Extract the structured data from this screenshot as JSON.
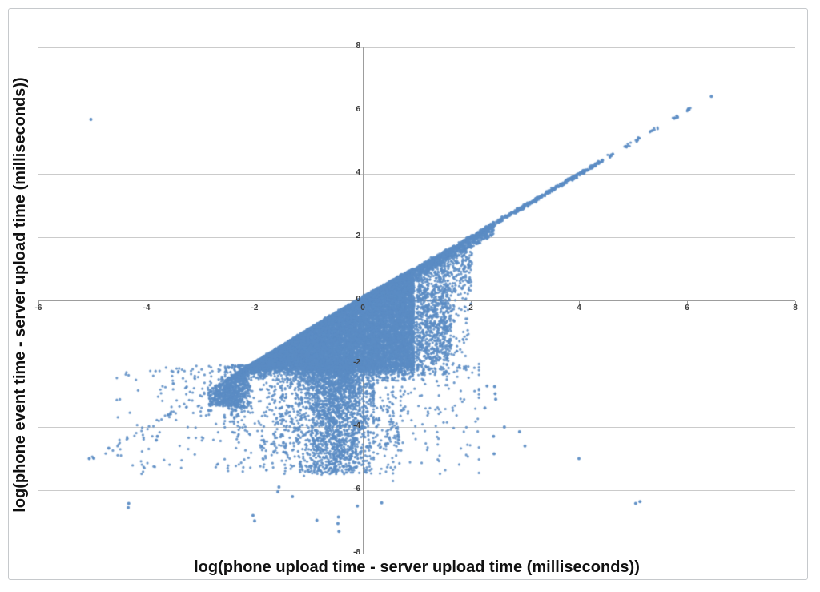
{
  "chart_data": {
    "type": "scatter",
    "title": "",
    "xlabel": "log(phone upload time - server upload time (milliseconds))",
    "ylabel": "log(phone event time - server upload time (milliseconds))",
    "xlim": [
      -6,
      8
    ],
    "ylim": [
      -8,
      8
    ],
    "x_ticks": [
      -6,
      -4,
      -2,
      0,
      2,
      4,
      6,
      8
    ],
    "y_ticks": [
      8,
      6,
      4,
      2,
      0,
      -2,
      -4,
      -6,
      -8
    ],
    "grid": "horizontal-only",
    "legend": "none",
    "point_color": "#5b8cc4",
    "gridline_color": "#cbcbcb",
    "axis_color": "#9d9d9d",
    "tick_label_color": "#3d3d3d",
    "title_color": "#111111",
    "marker_radius_px": 1.6,
    "description": "Dense wedge of points bounded above by the identity line y=x from (-2.85,-2.85) to about (1,1), with flat bottom near y=-2; vertical striation columns hang from the line for x between 1 and 2; the y=x line continues densely to (4.4,4.4) then as sparse dashes to (6.45,6.45); a broad sparse spray lies below y=-2 between x=-4.5 and x=2 reaching y=-7; a sparse y=x tail runs from (-5,-5) to (-2.9,-2.9); one isolated outlier sits near (-5,5.7).",
    "generation": {
      "seed": 42,
      "regions": [
        {
          "kind": "wedge",
          "n": 14500,
          "x_min": -2.85,
          "x_max": 0.95,
          "bottom": -2.08,
          "tip_width": 0.45,
          "tip_grow": 1.15,
          "fringe": 0.28,
          "top_bias": 1.25,
          "x_pow": 0.6
        },
        {
          "kind": "fringe",
          "n": 620,
          "x_min": -2.55,
          "x_max": 0.95,
          "y_top": -2.05,
          "depth": 0.5,
          "pow": 2.3
        },
        {
          "kind": "cols",
          "n_cols": 15,
          "x_min": 0.98,
          "x_max": 1.63,
          "depth_min": -1.6,
          "depth_max": -2.45,
          "pts_min": 40,
          "pts_max": 80,
          "jitter": 0.02,
          "bump": 0.08
        },
        {
          "kind": "cols",
          "n_cols": 7,
          "x_min": 1.67,
          "x_max": 2.03,
          "depth_min": 0.55,
          "depth_max": -0.5,
          "pts_min": 10,
          "pts_max": 28,
          "jitter": 0.015,
          "bump": 0.05
        },
        {
          "kind": "below_line",
          "n": 300,
          "x_min": 0.95,
          "x_max": 2.0,
          "y_min": -2.25
        },
        {
          "kind": "line",
          "n": 950,
          "x_min": 0.9,
          "x_max": 2.42,
          "below": 0.32,
          "below_pow": 2.3,
          "jitter": 0.035
        },
        {
          "kind": "line",
          "n": 430,
          "x_min": 2.36,
          "x_max": 4.45,
          "below": 0.06,
          "below_pow": 3,
          "jitter": 0.028
        },
        {
          "kind": "dashes",
          "segments": [
            [
              4.5,
              4.68
            ],
            [
              4.82,
              4.96
            ],
            [
              5.03,
              5.12
            ],
            [
              5.3,
              5.47
            ],
            [
              5.72,
              5.84
            ],
            [
              6.0,
              6.08
            ]
          ],
          "pts_per": 9,
          "jitter": 0.03
        },
        {
          "kind": "line",
          "n": 30,
          "x_min": -5.05,
          "x_max": -2.92,
          "below": 0.12,
          "below_pow": 2,
          "jitter": 0.045
        },
        {
          "kind": "dashes",
          "segments": [
            [
              -3.66,
              -3.5
            ]
          ],
          "pts_per": 9,
          "jitter": 0.025
        },
        {
          "kind": "col",
          "x": -2.82,
          "y1": -2.82,
          "y2": -3.62,
          "n": 16,
          "jitter": 0.02
        },
        {
          "kind": "col",
          "x": -4.07,
          "y1": -4.15,
          "y2": -5.55,
          "n": 9,
          "jitter": 0.02
        },
        {
          "kind": "col",
          "x": -4.5,
          "y1": -4.4,
          "y2": -5.15,
          "n": 5,
          "jitter": 0.02
        },
        {
          "kind": "col",
          "x": -1.85,
          "y1": -3.65,
          "y2": -5.2,
          "n": 10,
          "jitter": 0.025
        },
        {
          "kind": "col",
          "x": 1.38,
          "y1": -2.35,
          "y2": -5.55,
          "n": 12,
          "jitter": 0.03
        },
        {
          "kind": "col",
          "x": 0.55,
          "y1": -2.6,
          "y2": -5.9,
          "n": 13,
          "jitter": 0.03
        },
        {
          "kind": "gauss_band",
          "n": 2300,
          "x_center": -0.52,
          "x_sigma": 0.34,
          "x_min": -1.35,
          "x_max": 0.2,
          "y_top": -2.02,
          "depth": 3.45,
          "pow": 1.8
        },
        {
          "kind": "streaks",
          "n_streaks": 48,
          "x_min": -2.55,
          "x_max": 0.95,
          "top_min": -2.2,
          "top_max": -4.4,
          "len_min": 0.25,
          "len_max": 1.3,
          "pts_min": 4,
          "pts_max": 11
        },
        {
          "kind": "gauss_band",
          "n": 980,
          "x_center": -0.9,
          "x_sigma": 1.4,
          "x_min": -4.55,
          "x_max": 2.15,
          "y_top": -2.12,
          "depth": 3.3,
          "pow": 1.95
        }
      ],
      "outlier_points": [
        [
          -5.03,
          5.72
        ],
        [
          6.45,
          6.45
        ],
        [
          2.3,
          -2.7
        ],
        [
          2.44,
          -2.72
        ],
        [
          2.45,
          -2.95
        ],
        [
          2.46,
          -3.12
        ],
        [
          2.26,
          -3.4
        ],
        [
          2.62,
          -4.0
        ],
        [
          2.9,
          -4.15
        ],
        [
          2.42,
          -4.3
        ],
        [
          3.0,
          -4.6
        ],
        [
          2.43,
          -4.85
        ],
        [
          4.0,
          -5.0
        ],
        [
          5.05,
          -6.42
        ],
        [
          5.13,
          -6.36
        ],
        [
          -4.33,
          -6.42
        ],
        [
          -4.34,
          -6.55
        ],
        [
          -3.8,
          -4.3
        ],
        [
          -3.82,
          -4.42
        ],
        [
          -2.03,
          -6.8
        ],
        [
          -2.0,
          -6.97
        ],
        [
          -0.45,
          -6.85
        ],
        [
          -0.46,
          -7.05
        ],
        [
          -0.44,
          -7.3
        ],
        [
          -0.85,
          -6.95
        ],
        [
          -5.06,
          -5.0
        ],
        [
          -4.98,
          -4.98
        ],
        [
          -4.7,
          -4.67
        ],
        [
          2.3,
          1.96
        ],
        [
          0.35,
          -6.4
        ],
        [
          -0.1,
          -6.5
        ],
        [
          -1.3,
          -6.2
        ],
        [
          -1.55,
          -5.9
        ],
        [
          -1.57,
          -6.05
        ]
      ]
    }
  }
}
